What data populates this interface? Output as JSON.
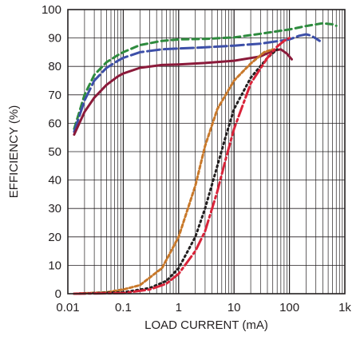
{
  "chart_data": {
    "type": "line",
    "title": "",
    "xlabel": "LOAD CURRENT (mA)",
    "ylabel": "EFFICIENCY (%)",
    "x_scale": "log",
    "xlim": [
      0.01,
      1000
    ],
    "ylim": [
      0,
      100
    ],
    "grid": true,
    "legend": "none",
    "x_ticks": [
      {
        "value": 0.01,
        "label": "0.01"
      },
      {
        "value": 0.1,
        "label": "0.1"
      },
      {
        "value": 1,
        "label": "1"
      },
      {
        "value": 10,
        "label": "10"
      },
      {
        "value": 100,
        "label": "100"
      },
      {
        "value": 1000,
        "label": "1k"
      }
    ],
    "y_ticks": [
      {
        "value": 0,
        "label": "0"
      },
      {
        "value": 10,
        "label": "10"
      },
      {
        "value": 20,
        "label": "20"
      },
      {
        "value": 30,
        "label": "30"
      },
      {
        "value": 40,
        "label": "40"
      },
      {
        "value": 50,
        "label": "50"
      },
      {
        "value": 60,
        "label": "60"
      },
      {
        "value": 70,
        "label": "70"
      },
      {
        "value": 80,
        "label": "80"
      },
      {
        "value": 90,
        "label": "90"
      },
      {
        "value": 100,
        "label": "100"
      }
    ],
    "series": [
      {
        "color": "#2e8b3e",
        "dash": "8,5",
        "points": [
          [
            0.013,
            58
          ],
          [
            0.02,
            70
          ],
          [
            0.03,
            77
          ],
          [
            0.05,
            81.5
          ],
          [
            0.08,
            84
          ],
          [
            0.1,
            85
          ],
          [
            0.2,
            87.5
          ],
          [
            0.5,
            89
          ],
          [
            1,
            89.5
          ],
          [
            3,
            89.7
          ],
          [
            10,
            90.2
          ],
          [
            30,
            91.5
          ],
          [
            100,
            93
          ],
          [
            200,
            94.2
          ],
          [
            400,
            95.2
          ],
          [
            600,
            94.8
          ],
          [
            700,
            94.3
          ]
        ]
      },
      {
        "color": "#3d4fa8",
        "dash": "16,5",
        "points": [
          [
            0.013,
            57
          ],
          [
            0.02,
            68
          ],
          [
            0.03,
            75
          ],
          [
            0.05,
            79.5
          ],
          [
            0.08,
            82
          ],
          [
            0.1,
            83
          ],
          [
            0.2,
            85
          ],
          [
            0.5,
            86
          ],
          [
            1,
            86.3
          ],
          [
            3,
            86.7
          ],
          [
            10,
            87.3
          ],
          [
            30,
            88
          ],
          [
            100,
            89.5
          ],
          [
            150,
            90.8
          ],
          [
            200,
            91.3
          ],
          [
            250,
            90.8
          ],
          [
            350,
            89
          ]
        ]
      },
      {
        "color": "#8b1a3a",
        "dash": "",
        "points": [
          [
            0.013,
            56
          ],
          [
            0.02,
            64
          ],
          [
            0.03,
            69
          ],
          [
            0.05,
            73.5
          ],
          [
            0.08,
            76.5
          ],
          [
            0.1,
            77.5
          ],
          [
            0.2,
            79.5
          ],
          [
            0.5,
            80.5
          ],
          [
            1,
            80.7
          ],
          [
            3,
            81.2
          ],
          [
            10,
            82
          ],
          [
            30,
            83.5
          ],
          [
            50,
            85.5
          ],
          [
            70,
            86
          ],
          [
            90,
            84.5
          ],
          [
            110,
            82.5
          ]
        ]
      },
      {
        "color": "#c8782a",
        "dash": "4,3",
        "points": [
          [
            0.013,
            0
          ],
          [
            0.05,
            0.5
          ],
          [
            0.1,
            1.5
          ],
          [
            0.2,
            3
          ],
          [
            0.5,
            9
          ],
          [
            1,
            20
          ],
          [
            2,
            38
          ],
          [
            3,
            52
          ],
          [
            5,
            65
          ],
          [
            10,
            75
          ],
          [
            20,
            81
          ],
          [
            35,
            85
          ],
          [
            50,
            86
          ]
        ]
      },
      {
        "color": "#231f20",
        "dash": "2,4",
        "points": [
          [
            0.013,
            0
          ],
          [
            0.1,
            0.5
          ],
          [
            0.3,
            2
          ],
          [
            0.6,
            4.5
          ],
          [
            1,
            9
          ],
          [
            2,
            20
          ],
          [
            3,
            30
          ],
          [
            5,
            45
          ],
          [
            7,
            55
          ],
          [
            10,
            65
          ],
          [
            20,
            76
          ],
          [
            40,
            83
          ],
          [
            60,
            86
          ]
        ]
      },
      {
        "color": "#d9243a",
        "dash": "14,4,3,4",
        "points": [
          [
            0.013,
            0
          ],
          [
            0.1,
            0.2
          ],
          [
            0.3,
            1.5
          ],
          [
            0.6,
            3.5
          ],
          [
            1,
            7
          ],
          [
            2,
            15
          ],
          [
            3,
            22
          ],
          [
            5,
            36
          ],
          [
            7,
            47
          ],
          [
            10,
            58
          ],
          [
            20,
            74
          ],
          [
            40,
            83
          ],
          [
            60,
            87
          ],
          [
            80,
            89
          ],
          [
            100,
            90
          ]
        ]
      }
    ]
  }
}
